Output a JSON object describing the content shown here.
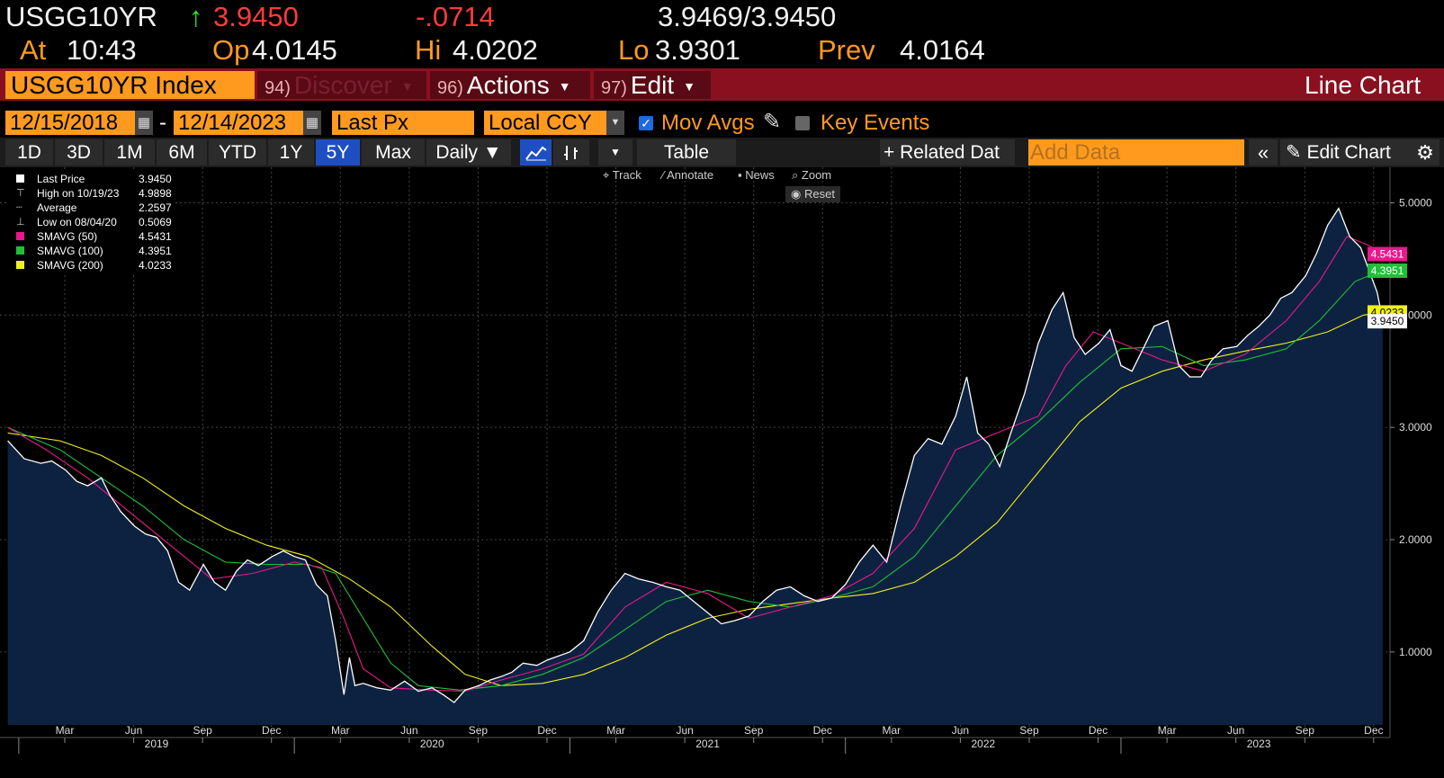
{
  "header": {
    "ticker": "USGG10YR",
    "arrow": "↑",
    "last": "3.9450",
    "change": "-.0714",
    "bid_ask": "3.9469/3.9450",
    "at_label": "At",
    "time": "10:43",
    "open_label": "Op",
    "open": "4.0145",
    "high_label": "Hi",
    "high": "4.0202",
    "low_label": "Lo",
    "low": "3.9301",
    "prev_label": "Prev",
    "prev": "4.0164"
  },
  "command_bar": {
    "security": "USGG10YR Index",
    "discover_num": "94)",
    "discover": "Discover",
    "actions_num": "96)",
    "actions": "Actions",
    "edit_num": "97)",
    "edit": "Edit",
    "function_title": "Line Chart"
  },
  "settings": {
    "start_date": "12/15/2018",
    "dash": "-",
    "end_date": "12/14/2023",
    "field": "Last Px",
    "currency": "Local CCY",
    "mov_avgs": "Mov Avgs",
    "key_events": "Key Events"
  },
  "range_bar": {
    "ranges": [
      "1D",
      "3D",
      "1M",
      "6M",
      "YTD",
      "1Y",
      "5Y",
      "Max"
    ],
    "selected": "5Y",
    "frequency": "Daily ▼",
    "table": "Table",
    "related": "+ Related Dat",
    "add_data_placeholder": "Add Data",
    "edit_chart": "Edit Chart"
  },
  "chart_tools": {
    "track": "Track",
    "annotate": "Annotate",
    "news": "News",
    "zoom": "Zoom",
    "reset": "Reset"
  },
  "legend": [
    {
      "label": "Last Price",
      "value": "3.9450",
      "color": "#ffffff",
      "symbol": "square"
    },
    {
      "label": "High on 10/19/23",
      "value": "4.9898",
      "color": "#cccccc",
      "symbol": "high"
    },
    {
      "label": "Average",
      "value": "2.2597",
      "color": "#cccccc",
      "symbol": "avg"
    },
    {
      "label": "Low on 08/04/20",
      "value": "0.5069",
      "color": "#cccccc",
      "symbol": "low"
    },
    {
      "label": "SMAVG (50)",
      "value": "4.5431",
      "color": "#e8188c",
      "symbol": "square"
    },
    {
      "label": "SMAVG (100)",
      "value": "4.3951",
      "color": "#1fbf3a",
      "symbol": "square"
    },
    {
      "label": "SMAVG (200)",
      "value": "4.0233",
      "color": "#f0f01a",
      "symbol": "square"
    }
  ],
  "badges": [
    {
      "value": "4.5431",
      "y": 4.5431,
      "bg": "#e8188c",
      "fg": "#ffffff"
    },
    {
      "value": "4.3951",
      "y": 4.3951,
      "bg": "#1fbf3a",
      "fg": "#ffffff"
    },
    {
      "value": "4.0233",
      "y": 4.0233,
      "bg": "#f0f01a",
      "fg": "#000000"
    },
    {
      "value": "3.9450",
      "y": 3.945,
      "bg": "#ffffff",
      "fg": "#000000"
    }
  ],
  "chart_data": {
    "type": "area",
    "y_axis_side": "right",
    "ylim": [
      0.35,
      5.3
    ],
    "yticks": [
      1,
      2,
      3,
      4,
      5
    ],
    "ytick_labels": [
      "1.0000",
      "2.0000",
      "3.0000",
      "4.0000",
      "5.0000"
    ],
    "xlim": [
      2018.958,
      2023.96
    ],
    "x_month_ticks": [
      {
        "x": 2019.167,
        "label": "Mar"
      },
      {
        "x": 2019.417,
        "label": "Jun"
      },
      {
        "x": 2019.667,
        "label": "Sep"
      },
      {
        "x": 2019.917,
        "label": "Dec"
      },
      {
        "x": 2020.167,
        "label": "Mar"
      },
      {
        "x": 2020.417,
        "label": "Jun"
      },
      {
        "x": 2020.667,
        "label": "Sep"
      },
      {
        "x": 2020.917,
        "label": "Dec"
      },
      {
        "x": 2021.167,
        "label": "Mar"
      },
      {
        "x": 2021.417,
        "label": "Jun"
      },
      {
        "x": 2021.667,
        "label": "Sep"
      },
      {
        "x": 2021.917,
        "label": "Dec"
      },
      {
        "x": 2022.167,
        "label": "Mar"
      },
      {
        "x": 2022.417,
        "label": "Jun"
      },
      {
        "x": 2022.667,
        "label": "Sep"
      },
      {
        "x": 2022.917,
        "label": "Dec"
      },
      {
        "x": 2023.167,
        "label": "Mar"
      },
      {
        "x": 2023.417,
        "label": "Jun"
      },
      {
        "x": 2023.667,
        "label": "Sep"
      },
      {
        "x": 2023.917,
        "label": "Dec"
      }
    ],
    "x_year_labels": [
      {
        "x": 2019.5,
        "label": "2019"
      },
      {
        "x": 2020.5,
        "label": "2020"
      },
      {
        "x": 2021.5,
        "label": "2021"
      },
      {
        "x": 2022.5,
        "label": "2022"
      },
      {
        "x": 2023.5,
        "label": "2023"
      }
    ],
    "year_dividers": [
      2019.0,
      2020.0,
      2021.0,
      2022.0,
      2023.0
    ],
    "series": [
      {
        "name": "Last Price",
        "color": "#ffffff",
        "fill": "#0d2240",
        "points": [
          [
            2018.96,
            2.88
          ],
          [
            2019.02,
            2.72
          ],
          [
            2019.08,
            2.68
          ],
          [
            2019.12,
            2.7
          ],
          [
            2019.17,
            2.62
          ],
          [
            2019.21,
            2.52
          ],
          [
            2019.25,
            2.48
          ],
          [
            2019.3,
            2.55
          ],
          [
            2019.33,
            2.4
          ],
          [
            2019.37,
            2.25
          ],
          [
            2019.42,
            2.12
          ],
          [
            2019.46,
            2.05
          ],
          [
            2019.5,
            2.02
          ],
          [
            2019.54,
            1.9
          ],
          [
            2019.58,
            1.62
          ],
          [
            2019.62,
            1.55
          ],
          [
            2019.67,
            1.78
          ],
          [
            2019.71,
            1.62
          ],
          [
            2019.75,
            1.55
          ],
          [
            2019.79,
            1.72
          ],
          [
            2019.83,
            1.82
          ],
          [
            2019.87,
            1.77
          ],
          [
            2019.92,
            1.85
          ],
          [
            2019.96,
            1.9
          ],
          [
            2020.0,
            1.85
          ],
          [
            2020.04,
            1.82
          ],
          [
            2020.08,
            1.6
          ],
          [
            2020.12,
            1.5
          ],
          [
            2020.15,
            1.1
          ],
          [
            2020.18,
            0.62
          ],
          [
            2020.2,
            0.95
          ],
          [
            2020.22,
            0.7
          ],
          [
            2020.25,
            0.72
          ],
          [
            2020.3,
            0.68
          ],
          [
            2020.35,
            0.66
          ],
          [
            2020.4,
            0.74
          ],
          [
            2020.45,
            0.65
          ],
          [
            2020.5,
            0.68
          ],
          [
            2020.54,
            0.62
          ],
          [
            2020.58,
            0.55
          ],
          [
            2020.62,
            0.66
          ],
          [
            2020.67,
            0.7
          ],
          [
            2020.71,
            0.75
          ],
          [
            2020.75,
            0.78
          ],
          [
            2020.79,
            0.82
          ],
          [
            2020.83,
            0.9
          ],
          [
            2020.88,
            0.88
          ],
          [
            2020.92,
            0.93
          ],
          [
            2021.0,
            1.0
          ],
          [
            2021.05,
            1.1
          ],
          [
            2021.1,
            1.35
          ],
          [
            2021.15,
            1.55
          ],
          [
            2021.2,
            1.7
          ],
          [
            2021.25,
            1.65
          ],
          [
            2021.3,
            1.62
          ],
          [
            2021.35,
            1.58
          ],
          [
            2021.4,
            1.55
          ],
          [
            2021.45,
            1.45
          ],
          [
            2021.5,
            1.35
          ],
          [
            2021.55,
            1.25
          ],
          [
            2021.6,
            1.28
          ],
          [
            2021.65,
            1.32
          ],
          [
            2021.7,
            1.45
          ],
          [
            2021.75,
            1.55
          ],
          [
            2021.8,
            1.58
          ],
          [
            2021.85,
            1.5
          ],
          [
            2021.9,
            1.45
          ],
          [
            2021.95,
            1.48
          ],
          [
            2022.0,
            1.6
          ],
          [
            2022.05,
            1.8
          ],
          [
            2022.1,
            1.95
          ],
          [
            2022.15,
            1.8
          ],
          [
            2022.2,
            2.3
          ],
          [
            2022.25,
            2.75
          ],
          [
            2022.3,
            2.9
          ],
          [
            2022.35,
            2.85
          ],
          [
            2022.4,
            3.1
          ],
          [
            2022.44,
            3.45
          ],
          [
            2022.48,
            2.95
          ],
          [
            2022.52,
            2.85
          ],
          [
            2022.56,
            2.65
          ],
          [
            2022.6,
            2.95
          ],
          [
            2022.65,
            3.3
          ],
          [
            2022.7,
            3.75
          ],
          [
            2022.75,
            4.05
          ],
          [
            2022.79,
            4.2
          ],
          [
            2022.83,
            3.8
          ],
          [
            2022.87,
            3.65
          ],
          [
            2022.92,
            3.75
          ],
          [
            2022.96,
            3.87
          ],
          [
            2023.0,
            3.55
          ],
          [
            2023.04,
            3.5
          ],
          [
            2023.08,
            3.7
          ],
          [
            2023.12,
            3.9
          ],
          [
            2023.17,
            3.95
          ],
          [
            2023.21,
            3.55
          ],
          [
            2023.25,
            3.45
          ],
          [
            2023.29,
            3.45
          ],
          [
            2023.33,
            3.6
          ],
          [
            2023.37,
            3.7
          ],
          [
            2023.42,
            3.72
          ],
          [
            2023.46,
            3.82
          ],
          [
            2023.5,
            3.9
          ],
          [
            2023.54,
            4.0
          ],
          [
            2023.58,
            4.15
          ],
          [
            2023.62,
            4.2
          ],
          [
            2023.67,
            4.35
          ],
          [
            2023.71,
            4.55
          ],
          [
            2023.75,
            4.8
          ],
          [
            2023.79,
            4.95
          ],
          [
            2023.83,
            4.7
          ],
          [
            2023.87,
            4.6
          ],
          [
            2023.9,
            4.4
          ],
          [
            2023.93,
            4.2
          ],
          [
            2023.95,
            3.95
          ]
        ]
      },
      {
        "name": "SMAVG (50)",
        "color": "#e8188c",
        "points": [
          [
            2018.96,
            3.0
          ],
          [
            2019.1,
            2.8
          ],
          [
            2019.25,
            2.55
          ],
          [
            2019.4,
            2.25
          ],
          [
            2019.55,
            1.95
          ],
          [
            2019.7,
            1.65
          ],
          [
            2019.85,
            1.7
          ],
          [
            2020.0,
            1.8
          ],
          [
            2020.1,
            1.75
          ],
          [
            2020.18,
            1.3
          ],
          [
            2020.25,
            0.85
          ],
          [
            2020.35,
            0.68
          ],
          [
            2020.5,
            0.66
          ],
          [
            2020.62,
            0.65
          ],
          [
            2020.75,
            0.75
          ],
          [
            2020.9,
            0.85
          ],
          [
            2021.05,
            0.98
          ],
          [
            2021.2,
            1.4
          ],
          [
            2021.35,
            1.62
          ],
          [
            2021.5,
            1.52
          ],
          [
            2021.65,
            1.3
          ],
          [
            2021.8,
            1.4
          ],
          [
            2021.95,
            1.5
          ],
          [
            2022.1,
            1.7
          ],
          [
            2022.25,
            2.1
          ],
          [
            2022.4,
            2.8
          ],
          [
            2022.55,
            2.95
          ],
          [
            2022.7,
            3.1
          ],
          [
            2022.8,
            3.55
          ],
          [
            2022.9,
            3.85
          ],
          [
            2023.0,
            3.75
          ],
          [
            2023.15,
            3.6
          ],
          [
            2023.3,
            3.5
          ],
          [
            2023.45,
            3.65
          ],
          [
            2023.6,
            3.95
          ],
          [
            2023.72,
            4.3
          ],
          [
            2023.82,
            4.7
          ],
          [
            2023.9,
            4.62
          ],
          [
            2023.95,
            4.54
          ]
        ]
      },
      {
        "name": "SMAVG (100)",
        "color": "#1fbf3a",
        "points": [
          [
            2018.96,
            3.0
          ],
          [
            2019.15,
            2.8
          ],
          [
            2019.3,
            2.55
          ],
          [
            2019.45,
            2.3
          ],
          [
            2019.6,
            2.0
          ],
          [
            2019.75,
            1.8
          ],
          [
            2019.9,
            1.78
          ],
          [
            2020.05,
            1.78
          ],
          [
            2020.15,
            1.7
          ],
          [
            2020.25,
            1.3
          ],
          [
            2020.35,
            0.9
          ],
          [
            2020.45,
            0.7
          ],
          [
            2020.6,
            0.66
          ],
          [
            2020.75,
            0.7
          ],
          [
            2020.9,
            0.8
          ],
          [
            2021.05,
            0.95
          ],
          [
            2021.2,
            1.2
          ],
          [
            2021.35,
            1.45
          ],
          [
            2021.5,
            1.55
          ],
          [
            2021.65,
            1.45
          ],
          [
            2021.8,
            1.4
          ],
          [
            2021.95,
            1.48
          ],
          [
            2022.1,
            1.58
          ],
          [
            2022.25,
            1.85
          ],
          [
            2022.4,
            2.3
          ],
          [
            2022.55,
            2.75
          ],
          [
            2022.7,
            3.05
          ],
          [
            2022.85,
            3.4
          ],
          [
            2023.0,
            3.7
          ],
          [
            2023.15,
            3.72
          ],
          [
            2023.3,
            3.55
          ],
          [
            2023.45,
            3.6
          ],
          [
            2023.6,
            3.7
          ],
          [
            2023.72,
            3.95
          ],
          [
            2023.85,
            4.3
          ],
          [
            2023.95,
            4.4
          ]
        ]
      },
      {
        "name": "SMAVG (200)",
        "color": "#f0f01a",
        "points": [
          [
            2018.96,
            2.95
          ],
          [
            2019.15,
            2.88
          ],
          [
            2019.3,
            2.75
          ],
          [
            2019.45,
            2.55
          ],
          [
            2019.6,
            2.3
          ],
          [
            2019.75,
            2.1
          ],
          [
            2019.9,
            1.95
          ],
          [
            2020.05,
            1.85
          ],
          [
            2020.2,
            1.65
          ],
          [
            2020.35,
            1.4
          ],
          [
            2020.5,
            1.05
          ],
          [
            2020.62,
            0.8
          ],
          [
            2020.75,
            0.7
          ],
          [
            2020.9,
            0.72
          ],
          [
            2021.05,
            0.8
          ],
          [
            2021.2,
            0.95
          ],
          [
            2021.35,
            1.15
          ],
          [
            2021.5,
            1.3
          ],
          [
            2021.65,
            1.38
          ],
          [
            2021.8,
            1.43
          ],
          [
            2021.95,
            1.48
          ],
          [
            2022.1,
            1.52
          ],
          [
            2022.25,
            1.62
          ],
          [
            2022.4,
            1.85
          ],
          [
            2022.55,
            2.15
          ],
          [
            2022.7,
            2.6
          ],
          [
            2022.85,
            3.05
          ],
          [
            2023.0,
            3.35
          ],
          [
            2023.15,
            3.5
          ],
          [
            2023.3,
            3.6
          ],
          [
            2023.45,
            3.68
          ],
          [
            2023.6,
            3.75
          ],
          [
            2023.75,
            3.85
          ],
          [
            2023.88,
            4.0
          ],
          [
            2023.95,
            4.02
          ]
        ]
      }
    ]
  }
}
